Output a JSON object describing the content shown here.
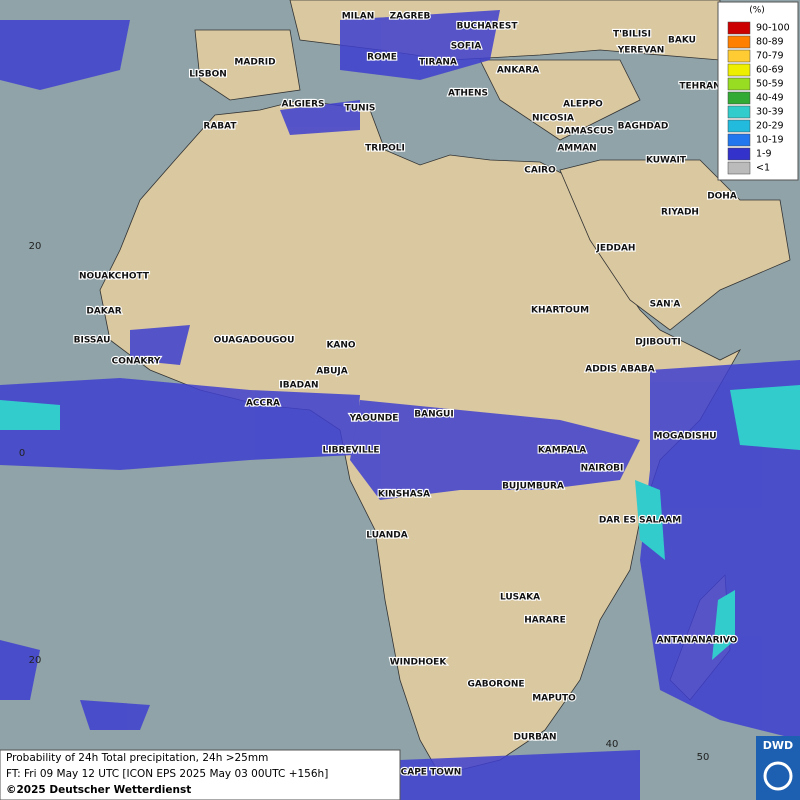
{
  "map": {
    "cities": [
      "MILAN",
      "ZAGREB",
      "BUCHAREST",
      "MADRID",
      "ROME",
      "SOFIA",
      "T'BILISI",
      "BAKU",
      "LISBON",
      "TIRANA",
      "ANKARA",
      "YEREVAN",
      "TEHRAN",
      "ATHENS",
      "ALGIERS",
      "TUNIS",
      "ALEPPO",
      "RABAT",
      "TRIPOLI",
      "NICOSIA",
      "BAGHDAD",
      "DAMASCUS",
      "AMMAN",
      "KUWAIT",
      "CAIRO",
      "DOHA",
      "RIYADH",
      "JEDDAH",
      "NOUAKCHOTT",
      "DAKAR",
      "SAN'A",
      "KHARTOUM",
      "BISSAU",
      "DJIBOUTI",
      "OUAGADOUGOU",
      "KANO",
      "CONAKRY",
      "ABUJA",
      "ADDIS ABABA",
      "IBADAN",
      "ACCRA",
      "BANGUI",
      "YAOUNDE",
      "MOGADISHU",
      "LIBREVILLE",
      "KAMPALA",
      "NAIROBI",
      "BUJUMBURA",
      "KINSHASA",
      "DAR ES SALAAM",
      "LUANDA",
      "LUSAKA",
      "HARARE",
      "ANTANANARIVO",
      "WINDHOEK",
      "GABORONE",
      "MAPUTO",
      "DURBAN",
      "CAPE TOWN"
    ],
    "grid_labels": [
      "20",
      "0",
      "20",
      "40",
      "50"
    ]
  },
  "legend": {
    "title": "(%)",
    "items": [
      {
        "label": "90-100",
        "color": "#cc0000"
      },
      {
        "label": "80-89",
        "color": "#ff7f00"
      },
      {
        "label": "70-79",
        "color": "#ffcc33"
      },
      {
        "label": "60-69",
        "color": "#eeee00"
      },
      {
        "label": "50-59",
        "color": "#99dd22"
      },
      {
        "label": "40-49",
        "color": "#33aa33"
      },
      {
        "label": "30-39",
        "color": "#33cccc"
      },
      {
        "label": "20-29",
        "color": "#22bbdd"
      },
      {
        "label": "10-19",
        "color": "#2277ee"
      },
      {
        "label": "1-9",
        "color": "#3333cc"
      },
      {
        "label": "<1",
        "color": "#bbbbbb"
      }
    ]
  },
  "footer": {
    "lines": [
      "Probability of 24h Total precipitation, 24h >25mm",
      "FT: Fri 09 May 12 UTC [ICON EPS 2025 May 03 00UTC +156h]",
      "©2025 Deutscher Wetterdienst"
    ]
  },
  "logo": "DWD"
}
